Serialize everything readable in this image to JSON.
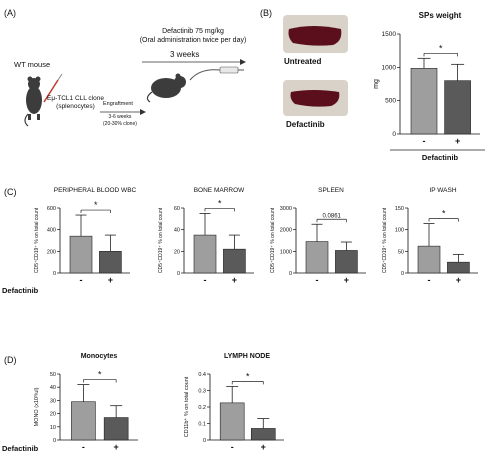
{
  "colors": {
    "untreated_bar": "#9e9e9e",
    "treated_bar": "#5a5a5a",
    "spleen": "#5b0f1c",
    "photo_bg": "#d8d2c8",
    "axis": "#111111"
  },
  "panel_a": {
    "letter": "(A)",
    "mouse_label": "WT mouse",
    "clone_label_1": "Eμ-TCL1 CLL clone",
    "clone_label_2": "(splenocytes)",
    "engraftment_label": "Engraftment",
    "engraftment_time_1": "3-6 weeks",
    "engraftment_time_2": "(20-30% clone)",
    "treatment_1": "Defactinib 75 mg/kg",
    "treatment_2": "(Oral administration twice per day)",
    "duration": "3 weeks",
    "icons": [
      "mouse-icon",
      "syringe-icon",
      "gavage-icon"
    ]
  },
  "panel_b": {
    "letter": "(B)",
    "photo_labels": [
      "Untreated",
      "Defactinib"
    ]
  },
  "group_label": "Defactinib",
  "chart_data": [
    {
      "type": "bar",
      "panel": "B",
      "title": "SPs weight",
      "ylabel": "mg",
      "categories": [
        "-",
        "+"
      ],
      "values": [
        985,
        800
      ],
      "errors": [
        150,
        245
      ],
      "ylim": [
        0,
        1500
      ],
      "yticks": [
        0,
        500,
        1000,
        1500
      ],
      "significance": "*"
    },
    {
      "type": "bar",
      "panel": "C",
      "title": "PERIPHERAL BLOOD WBC",
      "ylabel": "CD5⁺CD19⁺ % on total count",
      "categories": [
        "-",
        "+"
      ],
      "values": [
        340,
        200
      ],
      "errors": [
        195,
        150
      ],
      "ylim": [
        0,
        600
      ],
      "yticks": [
        0,
        200,
        400,
        600
      ],
      "significance": "*"
    },
    {
      "type": "bar",
      "panel": "C",
      "title": "BONE MARROW",
      "ylabel": "CD5⁺CD19⁺ % on total count",
      "categories": [
        "-",
        "+"
      ],
      "values": [
        35,
        22
      ],
      "errors": [
        20,
        13
      ],
      "ylim": [
        0,
        60
      ],
      "yticks": [
        0,
        20,
        40,
        60
      ],
      "significance": "*"
    },
    {
      "type": "bar",
      "panel": "C",
      "title": "SPLEEN",
      "ylabel": "CD5⁺CD19⁺ % on total count",
      "categories": [
        "-",
        "+"
      ],
      "values": [
        1450,
        1040
      ],
      "errors": [
        800,
        390
      ],
      "ylim": [
        0,
        3000
      ],
      "yticks": [
        0,
        1000,
        2000,
        3000
      ],
      "significance": "0.0861"
    },
    {
      "type": "bar",
      "panel": "C",
      "title": "IP WASH",
      "ylabel": "CD5⁺CD19⁺ % on total count",
      "categories": [
        "-",
        "+"
      ],
      "values": [
        62,
        25
      ],
      "errors": [
        52,
        18
      ],
      "ylim": [
        0,
        150
      ],
      "yticks": [
        0,
        50,
        100,
        150
      ],
      "significance": "*"
    },
    {
      "type": "bar",
      "panel": "D",
      "title": "Monocytes",
      "ylabel": "MONO (x10³/ul)",
      "categories": [
        "-",
        "+"
      ],
      "values": [
        29,
        17
      ],
      "errors": [
        13,
        9
      ],
      "ylim": [
        0,
        50
      ],
      "yticks": [
        0,
        10,
        20,
        30,
        40,
        50
      ],
      "significance": "*"
    },
    {
      "type": "bar",
      "panel": "D",
      "title": "LYMPH NODE",
      "ylabel": "CD11b⁺ % on total count",
      "categories": [
        "-",
        "+"
      ],
      "values": [
        0.225,
        0.07
      ],
      "errors": [
        0.1,
        0.06
      ],
      "ylim": [
        0,
        0.4
      ],
      "yticks": [
        0,
        0.1,
        0.2,
        0.3,
        0.4
      ],
      "significance": "*"
    }
  ],
  "panel_letters": {
    "c": "(C)",
    "d": "(D)"
  }
}
